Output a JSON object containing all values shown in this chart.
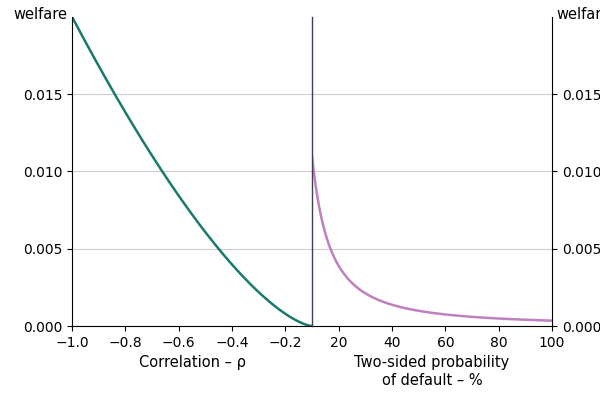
{
  "left_xlabel": "Correlation – ρ",
  "right_xlabel": "Two-sided probability\nof default – %",
  "left_ylabel": "welfare",
  "right_ylabel": "welfare",
  "ylim": [
    0.0,
    0.02
  ],
  "yticks": [
    0.0,
    0.005,
    0.01,
    0.015
  ],
  "left_xlim": [
    -1.0,
    -0.1
  ],
  "left_xticks": [
    -1.0,
    -0.8,
    -0.6,
    -0.4,
    -0.2
  ],
  "right_xlim": [
    10,
    100
  ],
  "right_xticks": [
    20,
    40,
    60,
    80,
    100
  ],
  "left_color": "#1a7a6e",
  "right_color": "#c080c0",
  "divider_color": "#404050",
  "grid_color": "#cccccc",
  "background_color": "#ffffff",
  "label_fontsize": 10.5,
  "tick_fontsize": 10,
  "ylabel_fontsize": 10.5
}
